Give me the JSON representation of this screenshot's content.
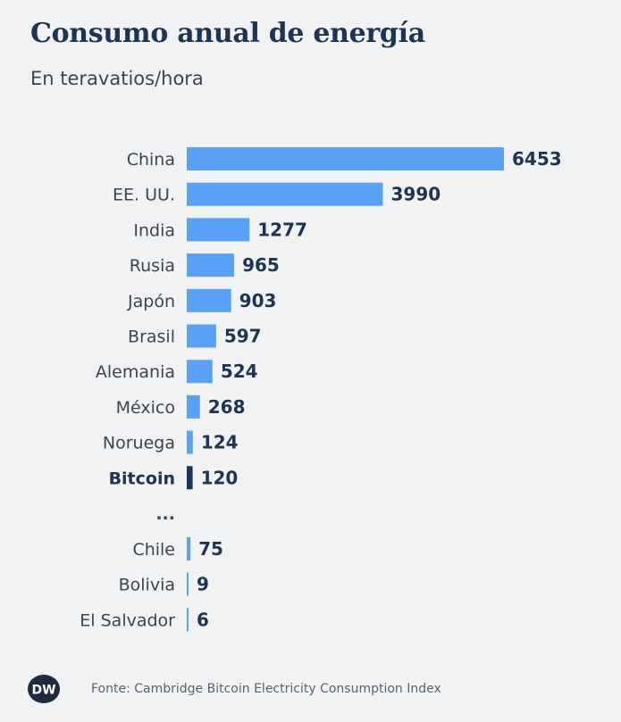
{
  "title": "Consumo anual de energía",
  "subtitle": "En teravatios/hora",
  "source": "Fonte: Cambridge Bitcoin Electricity Consumption Index",
  "logo_text": "DW",
  "ellipsis": "...",
  "colors": {
    "bar": "#5aa1f5",
    "highlight_bar": "#1a3556",
    "value_text": "#1d3452",
    "label_text": "#3d4450",
    "highlight_label": "#1d3452",
    "background": "#f1f2f4"
  },
  "chart_data": {
    "type": "bar",
    "orientation": "horizontal",
    "title": "Consumo anual de energía",
    "subtitle": "En teravatios/hora",
    "highlight": "Bitcoin",
    "categories": [
      "China",
      "EE. UU.",
      "India",
      "Rusia",
      "Japón",
      "Brasil",
      "Alemania",
      "México",
      "Noruega",
      "Bitcoin",
      "Chile",
      "Bolivia",
      "El Salvador"
    ],
    "values": [
      6453,
      3990,
      1277,
      965,
      903,
      597,
      524,
      268,
      124,
      120,
      75,
      9,
      6
    ],
    "gap_after": "Bitcoin",
    "xlim": [
      0,
      6453
    ],
    "grid": false,
    "legend": "none"
  }
}
